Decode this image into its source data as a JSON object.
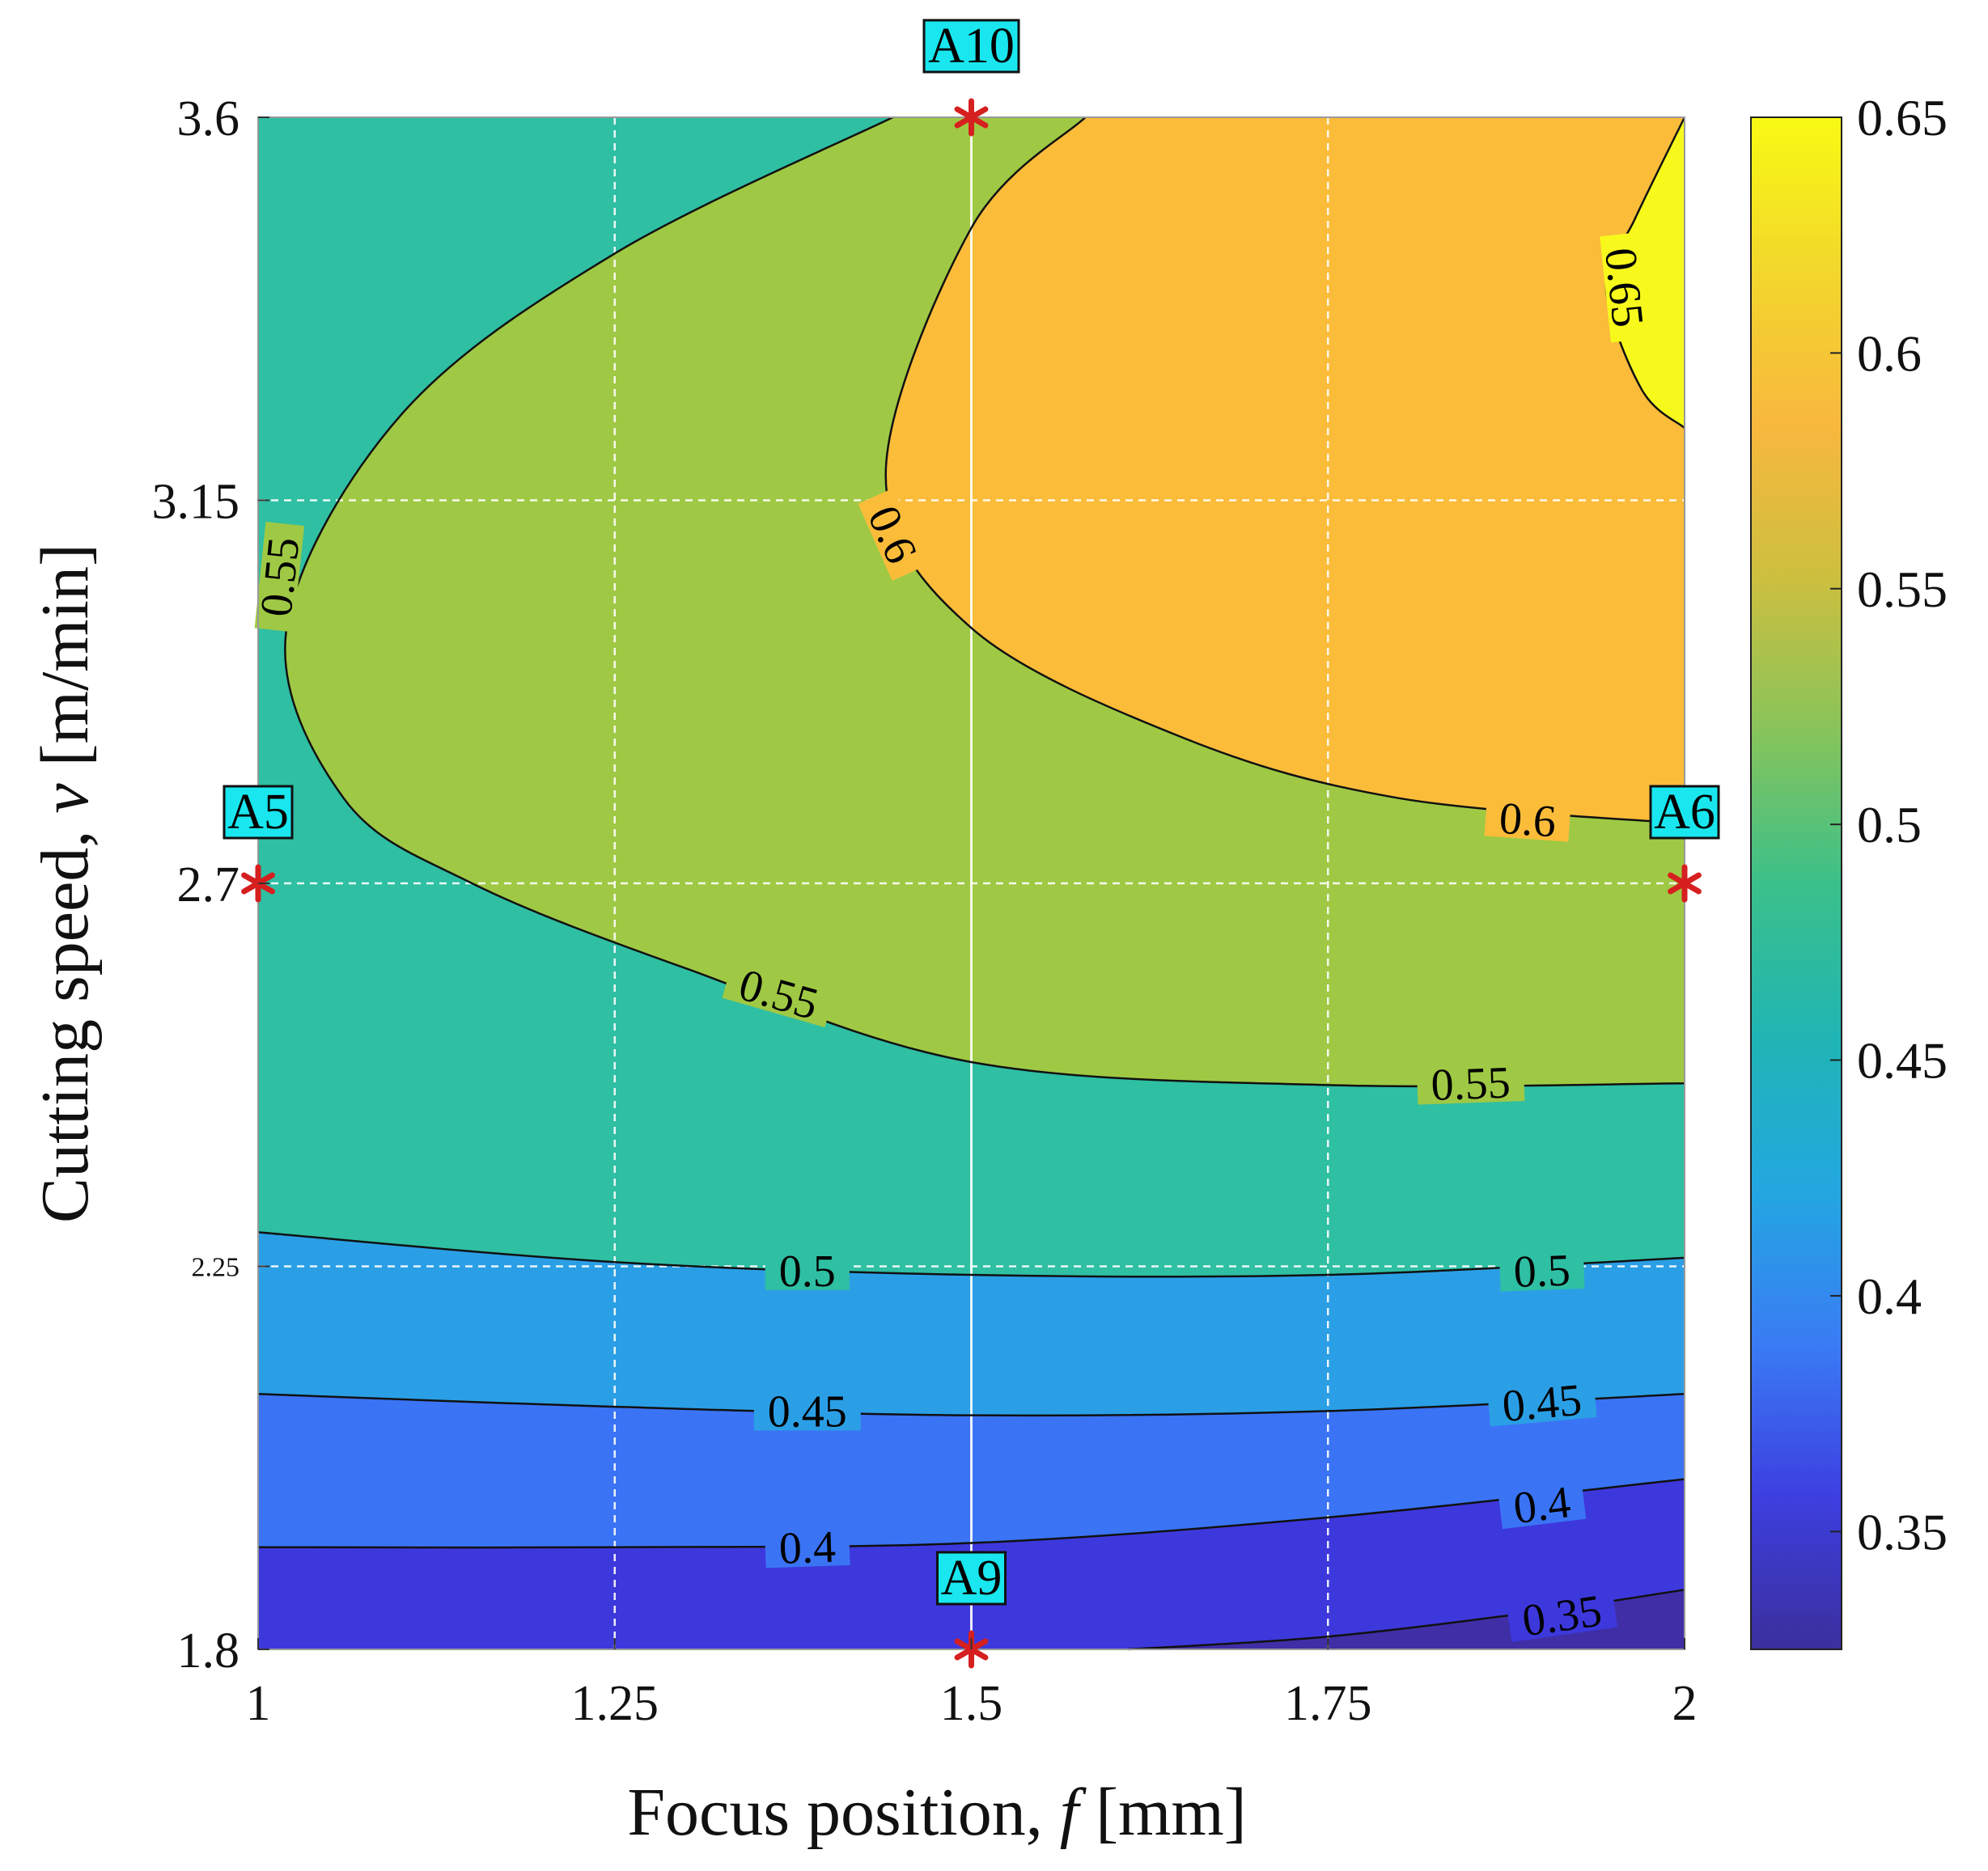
{
  "chart_data": {
    "type": "contour",
    "title": "",
    "xlabel": {
      "prefix": "Focus position, ",
      "var": "f",
      "unit": " [mm]"
    },
    "ylabel": {
      "prefix": "Cutting speed, ",
      "var": "v",
      "unit": " [m/min]"
    },
    "xlim": [
      1,
      2
    ],
    "ylim": [
      1.8,
      3.6
    ],
    "x_ticks": [
      "1",
      "1.25",
      "1.5",
      "1.75",
      "2"
    ],
    "x_tick_values": [
      1,
      1.25,
      1.5,
      1.75,
      2
    ],
    "y_ticks": [
      "1.8",
      "2.25",
      "2.7",
      "3.15",
      "3.6"
    ],
    "y_tick_values": [
      1.8,
      2.25,
      2.7,
      3.15,
      3.6
    ],
    "grid": true,
    "contour_levels": [
      0.35,
      0.4,
      0.45,
      0.5,
      0.55,
      0.6,
      0.65
    ],
    "level_labels": [
      "0.35",
      "0.4",
      "0.45",
      "0.5",
      "0.55",
      "0.6",
      "0.65"
    ],
    "level_colors": {
      "below_0.35": "#3f2ea6",
      "0.35-0.40": "#3d38dc",
      "0.40-0.45": "#3a74f5",
      "0.45-0.50": "#2b9fe6",
      "0.50-0.55": "#2fbfa3",
      "0.55-0.60": "#9fc944",
      "0.60-0.65": "#fbbc3a",
      "above_0.65": "#f7f91d"
    },
    "colorbar": {
      "min": 0.325,
      "max": 0.65,
      "ticks": [
        "0.35",
        "0.4",
        "0.45",
        "0.5",
        "0.55",
        "0.6",
        "0.65"
      ],
      "tick_values": [
        0.35,
        0.4,
        0.45,
        0.5,
        0.55,
        0.6,
        0.65
      ],
      "colors": [
        "#3b2f9c",
        "#3d3fe0",
        "#3a7cf4",
        "#23a7e0",
        "#20b5b4",
        "#3bc08a",
        "#88c45a",
        "#cdbf3f",
        "#f8b83e",
        "#f2d72c",
        "#f8fa13"
      ]
    },
    "contour_lines": [
      {
        "level": 0.35,
        "points": [
          [
            1.61,
            1.8
          ],
          [
            1.75,
            1.815
          ],
          [
            1.9,
            1.845
          ],
          [
            2.0,
            1.87
          ]
        ]
      },
      {
        "level": 0.4,
        "points": [
          [
            1.0,
            1.92
          ],
          [
            1.25,
            1.92
          ],
          [
            1.5,
            1.925
          ],
          [
            1.75,
            1.955
          ],
          [
            2.0,
            2.0
          ]
        ]
      },
      {
        "level": 0.45,
        "points": [
          [
            1.0,
            2.1
          ],
          [
            1.25,
            2.085
          ],
          [
            1.5,
            2.075
          ],
          [
            1.75,
            2.08
          ],
          [
            2.0,
            2.1
          ]
        ]
      },
      {
        "level": 0.5,
        "points": [
          [
            1.0,
            2.29
          ],
          [
            1.25,
            2.255
          ],
          [
            1.5,
            2.24
          ],
          [
            1.75,
            2.24
          ],
          [
            2.0,
            2.26
          ]
        ]
      },
      {
        "level": 0.55,
        "points": [
          [
            1.445,
            3.6
          ],
          [
            1.25,
            3.44
          ],
          [
            1.1,
            3.25
          ],
          [
            1.02,
            3.0
          ],
          [
            1.06,
            2.8
          ],
          [
            1.15,
            2.7
          ],
          [
            1.3,
            2.6
          ],
          [
            1.5,
            2.49
          ],
          [
            1.75,
            2.463
          ],
          [
            2.0,
            2.465
          ]
        ]
      },
      {
        "level": 0.6,
        "points": [
          [
            1.58,
            3.6
          ],
          [
            1.5,
            3.47
          ],
          [
            1.44,
            3.18
          ],
          [
            1.5,
            3.0
          ],
          [
            1.65,
            2.87
          ],
          [
            1.8,
            2.8
          ],
          [
            2.0,
            2.77
          ]
        ]
      },
      {
        "level": 0.65,
        "points": [
          [
            2.0,
            3.6
          ],
          [
            1.965,
            3.48
          ],
          [
            1.945,
            3.4
          ],
          [
            1.97,
            3.28
          ],
          [
            2.0,
            3.235
          ]
        ]
      }
    ],
    "contour_labels": [
      {
        "text": "0.35",
        "x": 1.914,
        "y": 1.84,
        "angle": -8
      },
      {
        "text": "0.4",
        "x": 1.385,
        "y": 1.92,
        "angle": -2
      },
      {
        "text": "0.4",
        "x": 1.9,
        "y": 1.97,
        "angle": -7
      },
      {
        "text": "0.45",
        "x": 1.385,
        "y": 2.08,
        "angle": 0
      },
      {
        "text": "0.45",
        "x": 1.9,
        "y": 2.09,
        "angle": -5
      },
      {
        "text": "0.5",
        "x": 1.385,
        "y": 2.245,
        "angle": 0
      },
      {
        "text": "0.5",
        "x": 1.9,
        "y": 2.245,
        "angle": -2
      },
      {
        "text": "0.55",
        "x": 1.015,
        "y": 3.06,
        "angle": -84
      },
      {
        "text": "0.55",
        "x": 1.365,
        "y": 2.57,
        "angle": 16
      },
      {
        "text": "0.55",
        "x": 1.85,
        "y": 2.465,
        "angle": -2
      },
      {
        "text": "0.6",
        "x": 1.445,
        "y": 3.11,
        "angle": 66
      },
      {
        "text": "0.6",
        "x": 1.89,
        "y": 2.775,
        "angle": 4
      },
      {
        "text": "0.65",
        "x": 1.958,
        "y": 3.4,
        "angle": 84
      }
    ],
    "design_points": [
      {
        "name": "A10",
        "x": 1.5,
        "y": 3.6,
        "label_pos": "above"
      },
      {
        "name": "A5",
        "x": 1.0,
        "y": 2.7,
        "label_pos": "above"
      },
      {
        "name": "A6",
        "x": 2.0,
        "y": 2.7,
        "label_pos": "above"
      },
      {
        "name": "A9",
        "x": 1.5,
        "y": 1.8,
        "label_pos": "above"
      }
    ],
    "marker_color": "#d61f1f",
    "label_box_color": "#19e6ee"
  }
}
